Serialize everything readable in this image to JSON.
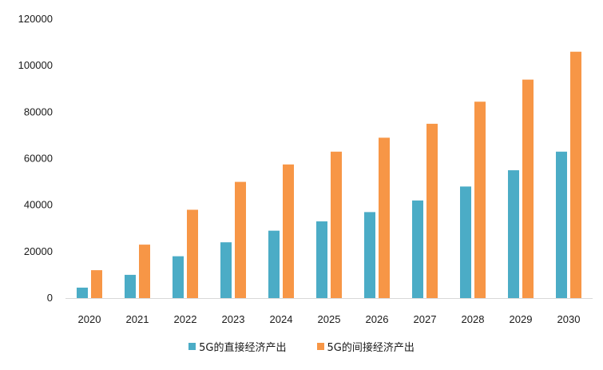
{
  "chart_data": {
    "type": "bar",
    "title": "",
    "xlabel": "",
    "ylabel": "",
    "categories": [
      "2020",
      "2021",
      "2022",
      "2023",
      "2024",
      "2025",
      "2026",
      "2027",
      "2028",
      "2029",
      "2030"
    ],
    "series": [
      {
        "name": "5G的直接经济产出",
        "color": "#4bacc6",
        "values": [
          4500,
          10000,
          18000,
          24000,
          29000,
          33000,
          37000,
          42000,
          48000,
          55000,
          63000
        ]
      },
      {
        "name": "5G的间接经济产出",
        "color": "#f79646",
        "values": [
          12000,
          23000,
          38000,
          50000,
          57500,
          63000,
          69000,
          75000,
          84500,
          94000,
          106000
        ]
      }
    ],
    "ylim": [
      0,
      120000
    ],
    "yticks": [
      0,
      20000,
      40000,
      60000,
      80000,
      100000,
      120000
    ],
    "grid": false,
    "legend_position": "bottom"
  }
}
